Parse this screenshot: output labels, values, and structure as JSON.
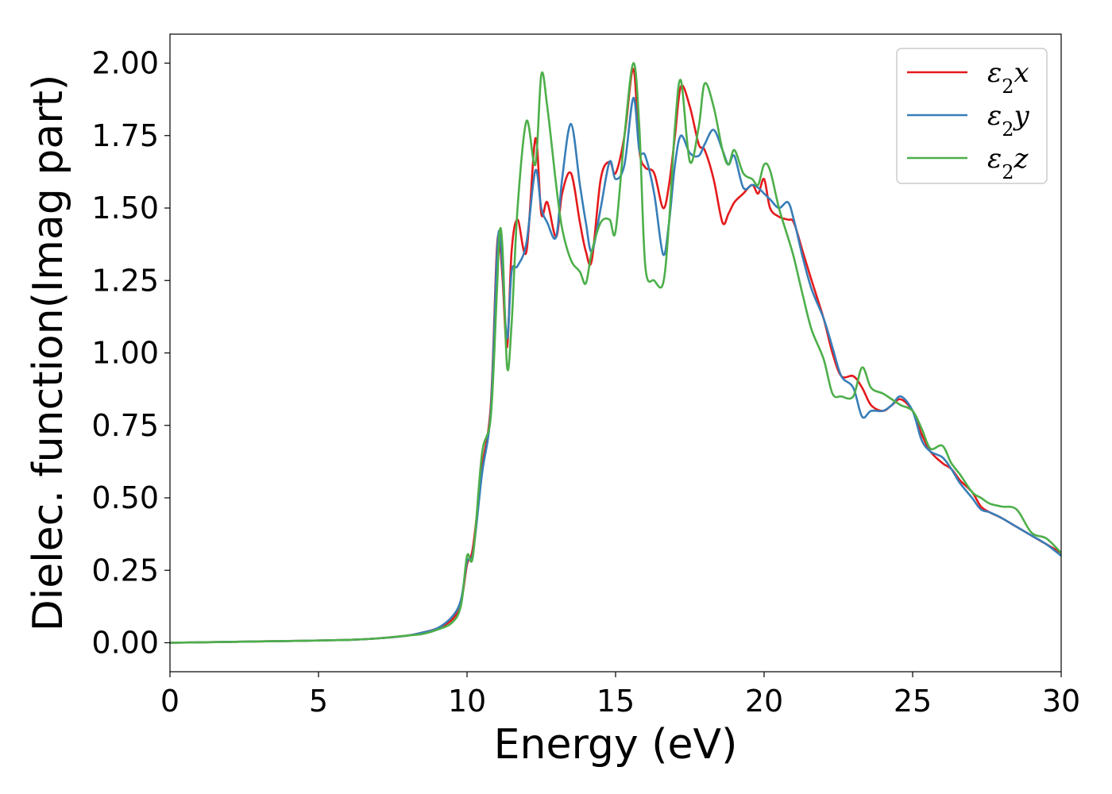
{
  "chart_data": {
    "type": "line",
    "title": "",
    "xlabel": "Energy (eV)",
    "ylabel": "Dielec. function(Imag part)",
    "xlim": [
      0,
      30
    ],
    "ylim": [
      -0.1,
      2.1
    ],
    "xticks": [
      "0",
      "5",
      "10",
      "15",
      "20",
      "25",
      "30"
    ],
    "yticks": [
      "0.00",
      "0.25",
      "0.50",
      "0.75",
      "1.00",
      "1.25",
      "1.50",
      "1.75",
      "2.00"
    ],
    "grid": false,
    "legend_position": "top-right",
    "series": [
      {
        "name": "ε2x",
        "legend": {
          "base": "ε",
          "sub": "2",
          "var": "x"
        },
        "color": "#e41a1c",
        "x": [
          0,
          2,
          4,
          6,
          7,
          8,
          8.5,
          9,
          9.5,
          9.8,
          10.0,
          10.2,
          10.5,
          10.8,
          11.0,
          11.1,
          11.2,
          11.35,
          11.5,
          11.7,
          12.0,
          12.3,
          12.5,
          12.7,
          13.0,
          13.2,
          13.5,
          13.8,
          14.0,
          14.2,
          14.5,
          14.8,
          15.0,
          15.3,
          15.6,
          15.8,
          16.0,
          16.3,
          16.6,
          16.8,
          17.0,
          17.2,
          17.5,
          17.8,
          18.0,
          18.3,
          18.6,
          18.8,
          19.0,
          19.3,
          19.6,
          19.8,
          20.0,
          20.2,
          20.5,
          20.8,
          21.0,
          21.3,
          21.6,
          22.0,
          22.3,
          22.6,
          23.0,
          23.3,
          23.6,
          24.0,
          24.3,
          24.6,
          25.0,
          25.3,
          25.6,
          26.0,
          26.3,
          26.6,
          27.0,
          27.3,
          27.6,
          28.0,
          28.5,
          29.0,
          29.5,
          30.0
        ],
        "y": [
          0.0,
          0.003,
          0.006,
          0.01,
          0.015,
          0.025,
          0.035,
          0.05,
          0.08,
          0.14,
          0.27,
          0.33,
          0.6,
          0.82,
          1.35,
          1.38,
          1.25,
          1.02,
          1.35,
          1.46,
          1.35,
          1.74,
          1.48,
          1.52,
          1.4,
          1.55,
          1.62,
          1.45,
          1.35,
          1.32,
          1.6,
          1.66,
          1.62,
          1.75,
          1.98,
          1.7,
          1.64,
          1.62,
          1.5,
          1.58,
          1.75,
          1.92,
          1.85,
          1.72,
          1.7,
          1.6,
          1.45,
          1.48,
          1.52,
          1.55,
          1.58,
          1.55,
          1.6,
          1.5,
          1.47,
          1.46,
          1.45,
          1.35,
          1.25,
          1.12,
          1.0,
          0.92,
          0.92,
          0.88,
          0.82,
          0.8,
          0.82,
          0.84,
          0.8,
          0.72,
          0.66,
          0.62,
          0.6,
          0.56,
          0.52,
          0.47,
          0.45,
          0.43,
          0.4,
          0.37,
          0.34,
          0.31
        ]
      },
      {
        "name": "ε2y",
        "legend": {
          "base": "ε",
          "sub": "2",
          "var": "y"
        },
        "color": "#377eb8",
        "x": [
          0,
          2,
          4,
          6,
          7,
          8,
          8.5,
          9,
          9.5,
          9.8,
          10.0,
          10.2,
          10.5,
          10.8,
          11.0,
          11.1,
          11.2,
          11.35,
          11.5,
          11.7,
          12.0,
          12.3,
          12.5,
          12.7,
          13.0,
          13.2,
          13.5,
          13.8,
          14.0,
          14.2,
          14.5,
          14.8,
          15.0,
          15.3,
          15.6,
          15.8,
          16.0,
          16.3,
          16.6,
          16.8,
          17.0,
          17.2,
          17.5,
          17.8,
          18.0,
          18.3,
          18.6,
          18.8,
          19.0,
          19.3,
          19.6,
          19.8,
          20.0,
          20.2,
          20.5,
          20.8,
          21.0,
          21.3,
          21.6,
          22.0,
          22.3,
          22.6,
          23.0,
          23.3,
          23.6,
          24.0,
          24.3,
          24.6,
          25.0,
          25.3,
          25.6,
          26.0,
          26.3,
          26.6,
          27.0,
          27.3,
          27.6,
          28.0,
          28.5,
          29.0,
          29.5,
          30.0
        ],
        "y": [
          0.0,
          0.003,
          0.006,
          0.01,
          0.015,
          0.025,
          0.035,
          0.05,
          0.09,
          0.15,
          0.28,
          0.31,
          0.58,
          0.8,
          1.32,
          1.42,
          1.28,
          1.05,
          1.28,
          1.3,
          1.38,
          1.63,
          1.5,
          1.45,
          1.4,
          1.6,
          1.79,
          1.58,
          1.45,
          1.35,
          1.5,
          1.66,
          1.6,
          1.65,
          1.88,
          1.7,
          1.68,
          1.55,
          1.34,
          1.45,
          1.65,
          1.75,
          1.69,
          1.68,
          1.72,
          1.77,
          1.7,
          1.65,
          1.68,
          1.57,
          1.58,
          1.57,
          1.55,
          1.53,
          1.5,
          1.52,
          1.46,
          1.33,
          1.22,
          1.12,
          1.02,
          0.92,
          0.88,
          0.78,
          0.8,
          0.8,
          0.82,
          0.85,
          0.8,
          0.7,
          0.66,
          0.64,
          0.6,
          0.55,
          0.5,
          0.46,
          0.45,
          0.43,
          0.4,
          0.37,
          0.34,
          0.3
        ]
      },
      {
        "name": "ε2z",
        "legend": {
          "base": "ε",
          "sub": "2",
          "var": "z"
        },
        "color": "#4daf4a",
        "x": [
          0,
          2,
          4,
          6,
          7,
          8,
          8.5,
          9,
          9.5,
          9.8,
          10.0,
          10.2,
          10.5,
          10.8,
          11.0,
          11.1,
          11.2,
          11.35,
          11.5,
          11.7,
          12.0,
          12.3,
          12.5,
          12.7,
          13.0,
          13.2,
          13.5,
          13.8,
          14.0,
          14.2,
          14.5,
          14.8,
          15.0,
          15.3,
          15.6,
          15.8,
          16.0,
          16.3,
          16.6,
          16.8,
          17.0,
          17.2,
          17.5,
          17.8,
          18.0,
          18.3,
          18.6,
          18.8,
          19.0,
          19.3,
          19.6,
          19.8,
          20.0,
          20.2,
          20.5,
          20.8,
          21.0,
          21.3,
          21.6,
          22.0,
          22.3,
          22.6,
          23.0,
          23.3,
          23.6,
          24.0,
          24.3,
          24.6,
          25.0,
          25.3,
          25.6,
          26.0,
          26.3,
          26.6,
          27.0,
          27.3,
          27.6,
          28.0,
          28.5,
          29.0,
          29.5,
          30.0
        ],
        "y": [
          0.0,
          0.003,
          0.006,
          0.01,
          0.015,
          0.025,
          0.03,
          0.045,
          0.07,
          0.13,
          0.3,
          0.3,
          0.65,
          0.78,
          1.2,
          1.42,
          1.35,
          0.95,
          1.1,
          1.5,
          1.8,
          1.65,
          1.96,
          1.85,
          1.58,
          1.43,
          1.32,
          1.28,
          1.24,
          1.35,
          1.45,
          1.46,
          1.42,
          1.75,
          2.0,
          1.78,
          1.3,
          1.25,
          1.24,
          1.45,
          1.78,
          1.94,
          1.66,
          1.78,
          1.93,
          1.85,
          1.7,
          1.65,
          1.7,
          1.62,
          1.6,
          1.58,
          1.65,
          1.63,
          1.5,
          1.4,
          1.33,
          1.2,
          1.08,
          0.98,
          0.86,
          0.85,
          0.85,
          0.95,
          0.88,
          0.86,
          0.84,
          0.82,
          0.8,
          0.74,
          0.67,
          0.68,
          0.62,
          0.58,
          0.52,
          0.5,
          0.48,
          0.47,
          0.46,
          0.38,
          0.36,
          0.31
        ]
      }
    ]
  }
}
